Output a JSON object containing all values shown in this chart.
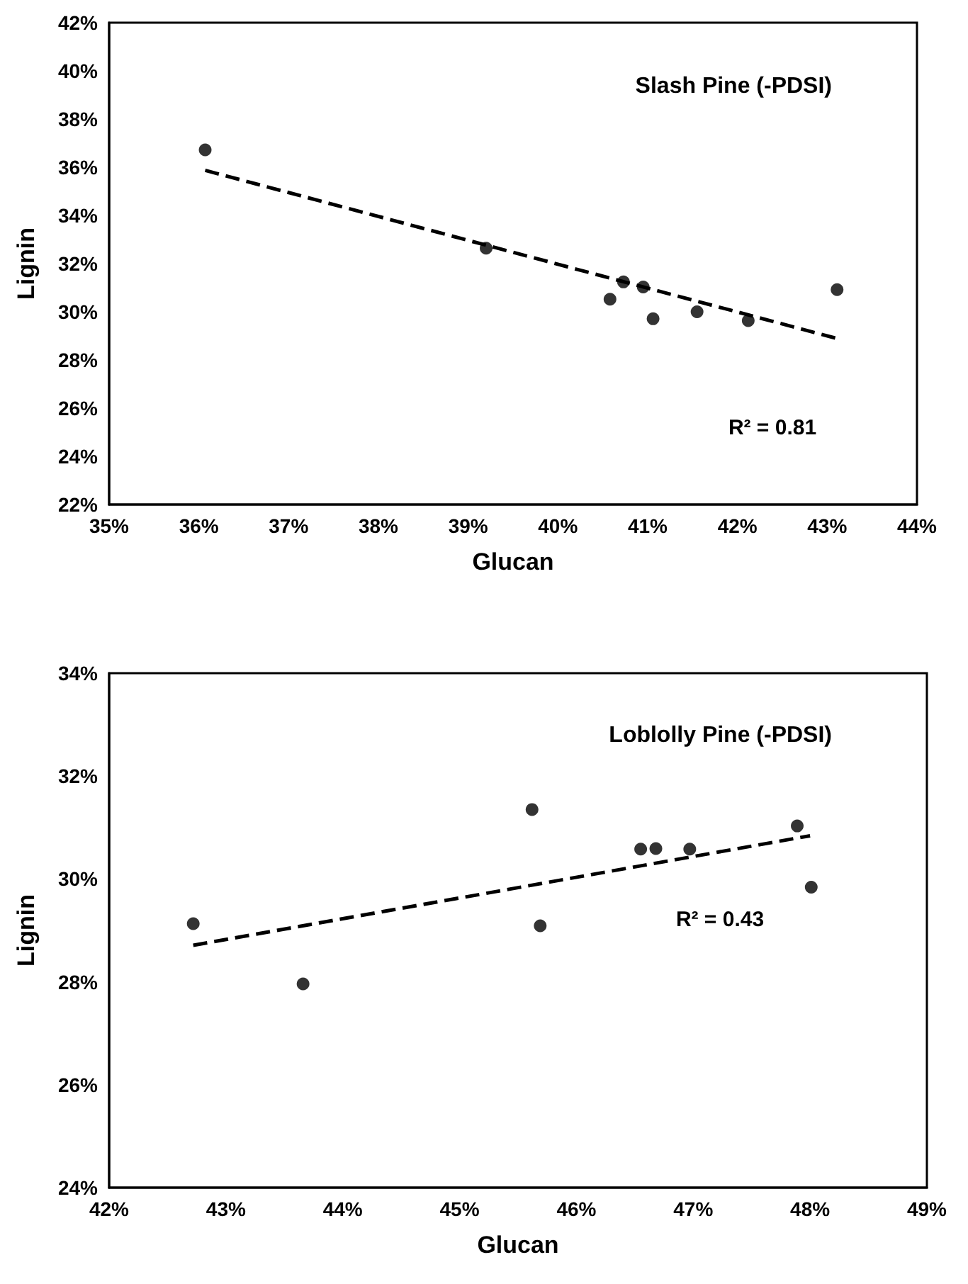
{
  "chart_data": [
    {
      "type": "scatter",
      "title": "Slash Pine (-PDSI)",
      "xlabel": "Glucan",
      "ylabel": "Lignin",
      "annotations": [
        "R² = 0.81"
      ],
      "marker": "circle",
      "grid": false,
      "xlim": [
        35,
        44
      ],
      "xticks": [
        {
          "value": 35,
          "label": "35%"
        },
        {
          "value": 36,
          "label": "36%"
        },
        {
          "value": 37,
          "label": "37%"
        },
        {
          "value": 38,
          "label": "38%"
        },
        {
          "value": 39,
          "label": "39%"
        },
        {
          "value": 40,
          "label": "40%"
        },
        {
          "value": 41,
          "label": "41%"
        },
        {
          "value": 42,
          "label": "42%"
        },
        {
          "value": 43,
          "label": "43%"
        },
        {
          "value": 44,
          "label": "44%"
        }
      ],
      "ylim": [
        22,
        42
      ],
      "yticks": [
        {
          "value": 22,
          "label": "22%"
        },
        {
          "value": 24,
          "label": "24%"
        },
        {
          "value": 26,
          "label": "26%"
        },
        {
          "value": 28,
          "label": "28%"
        },
        {
          "value": 30,
          "label": "30%"
        },
        {
          "value": 32,
          "label": "32%"
        },
        {
          "value": 34,
          "label": "34%"
        },
        {
          "value": 36,
          "label": "36%"
        },
        {
          "value": 38,
          "label": "38%"
        },
        {
          "value": 40,
          "label": "40%"
        },
        {
          "value": 42,
          "label": "42%"
        }
      ],
      "series": [
        {
          "type": "scatter",
          "color": "#000000",
          "x": [
            36.07,
            39.2,
            40.58,
            40.73,
            40.95,
            41.06,
            41.55,
            42.12,
            43.11
          ],
          "values": [
            36.72,
            32.64,
            30.52,
            31.24,
            31.03,
            29.71,
            30.0,
            29.63,
            30.92
          ]
        },
        {
          "type": "line",
          "color": "#000000",
          "line_style": "dashed",
          "marker": "none",
          "x": [
            36.07,
            43.11
          ],
          "values": [
            35.87,
            28.89
          ]
        }
      ]
    },
    {
      "type": "scatter",
      "title": "Loblolly Pine (-PDSI)",
      "xlabel": "Glucan",
      "ylabel": "Lignin",
      "annotations": [
        "R² = 0.43"
      ],
      "marker": "circle",
      "grid": false,
      "xlim": [
        42,
        49
      ],
      "xticks": [
        {
          "value": 42,
          "label": "42%"
        },
        {
          "value": 43,
          "label": "43%"
        },
        {
          "value": 44,
          "label": "44%"
        },
        {
          "value": 45,
          "label": "45%"
        },
        {
          "value": 46,
          "label": "46%"
        },
        {
          "value": 47,
          "label": "47%"
        },
        {
          "value": 48,
          "label": "48%"
        },
        {
          "value": 49,
          "label": "49%"
        }
      ],
      "ylim": [
        24,
        34
      ],
      "yticks": [
        {
          "value": 24,
          "label": "24%"
        },
        {
          "value": 26,
          "label": "26%"
        },
        {
          "value": 28,
          "label": "28%"
        },
        {
          "value": 30,
          "label": "30%"
        },
        {
          "value": 32,
          "label": "32%"
        },
        {
          "value": 34,
          "label": "34%"
        }
      ],
      "series": [
        {
          "type": "scatter",
          "color": "#000000",
          "x": [
            42.72,
            43.66,
            45.62,
            45.69,
            46.55,
            46.68,
            46.97,
            47.89,
            48.01
          ],
          "values": [
            29.13,
            27.96,
            31.35,
            29.09,
            30.58,
            30.59,
            30.58,
            31.03,
            29.84
          ]
        },
        {
          "type": "line",
          "color": "#000000",
          "line_style": "dashed",
          "marker": "none",
          "x": [
            42.72,
            48.0
          ],
          "values": [
            28.71,
            30.84
          ]
        }
      ]
    }
  ]
}
